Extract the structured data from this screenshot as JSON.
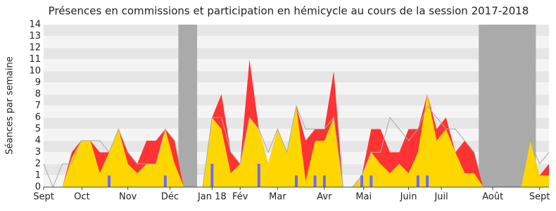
{
  "chart_data": {
    "type": "area",
    "title": "Présences en commissions et participation en hémicycle au cours de la session 2017-2018",
    "ylabel": "Séances par semaine",
    "x": [
      0,
      1,
      2,
      3,
      4,
      5,
      6,
      7,
      8,
      9,
      10,
      11,
      12,
      13,
      14,
      15,
      16,
      17,
      18,
      19,
      20,
      21,
      22,
      23,
      24,
      25,
      26,
      27,
      28,
      29,
      30,
      31,
      32,
      33,
      34,
      35,
      36,
      37,
      38,
      39,
      40,
      41,
      42,
      43,
      44,
      45,
      46,
      47,
      48,
      49,
      50,
      51,
      52,
      53,
      54
    ],
    "xlim": [
      0,
      54
    ],
    "xticks": [
      {
        "value": 0,
        "label": "Sept"
      },
      {
        "value": 4.1,
        "label": "Oct"
      },
      {
        "value": 9,
        "label": "Nov"
      },
      {
        "value": 13.5,
        "label": "Déc"
      },
      {
        "value": 18,
        "label": "Jan 18"
      },
      {
        "value": 21,
        "label": "Fév"
      },
      {
        "value": 25,
        "label": "Mar"
      },
      {
        "value": 30,
        "label": "Avr"
      },
      {
        "value": 34.2,
        "label": "Mai"
      },
      {
        "value": 39,
        "label": "Juin"
      },
      {
        "value": 42.5,
        "label": "Juil"
      },
      {
        "value": 48,
        "label": "Août"
      },
      {
        "value": 53,
        "label": "Sept"
      }
    ],
    "ylim": [
      0,
      14
    ],
    "yticks": [
      0,
      1,
      2,
      3,
      4,
      5,
      6,
      7,
      8,
      9,
      10,
      11,
      12,
      13,
      14
    ],
    "grid": true,
    "vacations": [
      [
        14.4,
        16.4
      ],
      [
        46.5,
        52.6
      ]
    ],
    "vacation_color": "#aaaaaa",
    "series": [
      {
        "style": "area",
        "color": "#ff3333",
        "values": [
          0,
          0,
          0,
          3,
          4,
          4,
          3,
          3,
          5,
          3,
          2,
          4,
          4,
          5,
          4,
          0,
          0,
          0,
          6,
          8,
          3,
          2,
          11,
          5,
          2,
          5,
          3,
          7,
          4,
          5,
          5,
          10,
          0,
          0,
          1,
          5,
          5,
          3,
          3,
          5,
          5,
          8,
          5,
          6,
          3,
          4,
          3,
          0,
          0,
          0,
          0,
          0,
          4,
          1,
          2
        ]
      },
      {
        "style": "area",
        "color": "#ffd700",
        "values": [
          0,
          0,
          0,
          2.5,
          4,
          4,
          1.2,
          3,
          5,
          2,
          1.2,
          2,
          2,
          5,
          2,
          0,
          0,
          0,
          6,
          5,
          1.2,
          2,
          6,
          5,
          2,
          5,
          3,
          7,
          0.5,
          4,
          4,
          6,
          0,
          0,
          1,
          3,
          2,
          1.2,
          2,
          1.2,
          3,
          8,
          4,
          5,
          3,
          1.2,
          1.2,
          0,
          0,
          0,
          0,
          0,
          4,
          1,
          1
        ]
      },
      {
        "style": "line",
        "color": "#aaaaaa",
        "values": [
          2,
          0,
          2,
          2,
          4,
          4,
          4,
          3,
          5,
          3,
          2,
          2,
          2,
          5,
          4,
          0,
          0,
          0,
          6,
          6,
          3,
          2,
          6,
          5,
          3,
          5,
          3,
          7,
          5,
          5,
          5,
          6,
          0,
          0,
          1,
          3,
          3,
          6,
          5,
          4,
          5,
          7,
          6,
          5,
          5,
          4,
          3,
          0,
          0,
          0,
          0,
          0,
          4,
          2,
          3
        ]
      },
      {
        "style": "bar",
        "color": "#6b6bff",
        "values": [
          0,
          0,
          0,
          0,
          0,
          0,
          0,
          1,
          0,
          0,
          0,
          0,
          0,
          1,
          0,
          0,
          0,
          0,
          2,
          0,
          0,
          0,
          0,
          2,
          0,
          0,
          0,
          1,
          0,
          1,
          1,
          0,
          0,
          0,
          1,
          1,
          0,
          0,
          0,
          0,
          1,
          1,
          0,
          0,
          0,
          0,
          0,
          0,
          0,
          0,
          0,
          0,
          0,
          0,
          0
        ]
      }
    ]
  }
}
